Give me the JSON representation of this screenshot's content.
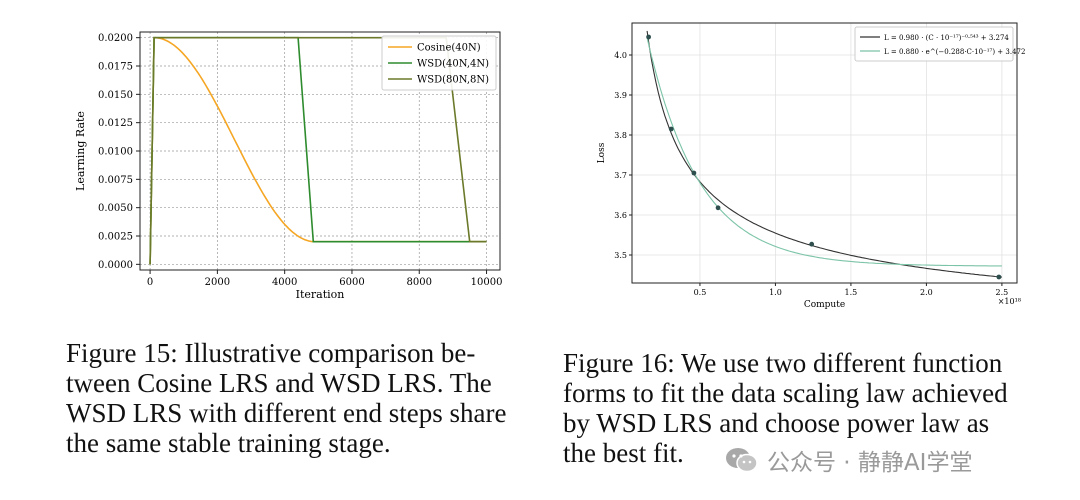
{
  "chart_data": [
    {
      "type": "line",
      "xlabel": "Iteration",
      "ylabel": "Learning Rate",
      "xlim": [
        -300,
        10400
      ],
      "ylim": [
        -0.0005,
        0.0205
      ],
      "x_ticks": [
        0,
        2000,
        4000,
        6000,
        8000,
        10000
      ],
      "x_tick_labels": [
        "0",
        "2000",
        "4000",
        "6000",
        "8000",
        "10000"
      ],
      "y_ticks": [
        0.0,
        0.0025,
        0.005,
        0.0075,
        0.01,
        0.0125,
        0.015,
        0.0175,
        0.02
      ],
      "y_tick_labels": [
        "0.0000",
        "0.0025",
        "0.0050",
        "0.0075",
        "0.0100",
        "0.0125",
        "0.0150",
        "0.0175",
        "0.0200"
      ],
      "grid": true,
      "legend_position": "top-right",
      "series": [
        {
          "name": "Cosine(40N)",
          "color": "#f5a623",
          "kind": "cosine",
          "warmup_end": 120,
          "decay_end": 4900,
          "max": 0.02,
          "min": 0.002,
          "tail_end": 10000
        },
        {
          "name": "WSD(40N,4N)",
          "color": "#2e8b2e",
          "points": [
            [
              0,
              0.0
            ],
            [
              120,
              0.02
            ],
            [
              4400,
              0.02
            ],
            [
              4850,
              0.002
            ],
            [
              10000,
              0.002
            ]
          ]
        },
        {
          "name": "WSD(80N,8N)",
          "color": "#6b7a2a",
          "points": [
            [
              0,
              0.0
            ],
            [
              120,
              0.02
            ],
            [
              8800,
              0.02
            ],
            [
              9500,
              0.002
            ],
            [
              10000,
              0.002
            ]
          ]
        }
      ]
    },
    {
      "type": "scatter",
      "xlabel": "Compute",
      "ylabel": "Loss",
      "x_scale_note": "×10¹⁸",
      "xlim": [
        0.05,
        2.6
      ],
      "ylim": [
        3.43,
        4.08
      ],
      "x_ticks": [
        0.5,
        1.0,
        1.5,
        2.0,
        2.5
      ],
      "x_tick_labels": [
        "0.5",
        "1.0",
        "1.5",
        "2.0",
        "2.5"
      ],
      "y_ticks": [
        3.5,
        3.6,
        3.7,
        3.8,
        3.9,
        4.0
      ],
      "y_tick_labels": [
        "3.5",
        "3.6",
        "3.7",
        "3.8",
        "3.9",
        "4.0"
      ],
      "grid": true,
      "legend_position": "top-right",
      "points": [
        {
          "x": 0.16,
          "y": 4.045
        },
        {
          "x": 0.31,
          "y": 3.815
        },
        {
          "x": 0.46,
          "y": 3.705
        },
        {
          "x": 0.62,
          "y": 3.618
        },
        {
          "x": 1.24,
          "y": 3.527
        },
        {
          "x": 2.48,
          "y": 3.445
        }
      ],
      "fits": [
        {
          "name": "L = 0.980 · (C · 10⁻¹⁷)⁻⁰·⁵⁴³ + 3.274",
          "color": "#333333",
          "kind": "power",
          "a": 0.98,
          "b": -0.543,
          "c": 3.274,
          "scale": 10
        },
        {
          "name": "L = 0.880 · e^(−0.288·C·10⁻¹⁷) + 3.472",
          "color": "#7cc4a8",
          "kind": "exp",
          "a": 0.88,
          "b": -0.288,
          "c": 3.472,
          "scale": 10
        }
      ]
    }
  ],
  "captions": {
    "left": [
      "Figure 15:  Illustrative comparison be-",
      "tween Cosine LRS and WSD LRS. The",
      "WSD LRS with different end steps share",
      "the same stable training stage."
    ],
    "right": [
      "Figure 16: We use two different function",
      "forms to fit the data scaling law achieved",
      "by WSD LRS and choose power law as",
      "the best fit."
    ]
  },
  "watermark": {
    "text": "公众号 · 静静AI学堂",
    "icon": "wechat-icon"
  }
}
